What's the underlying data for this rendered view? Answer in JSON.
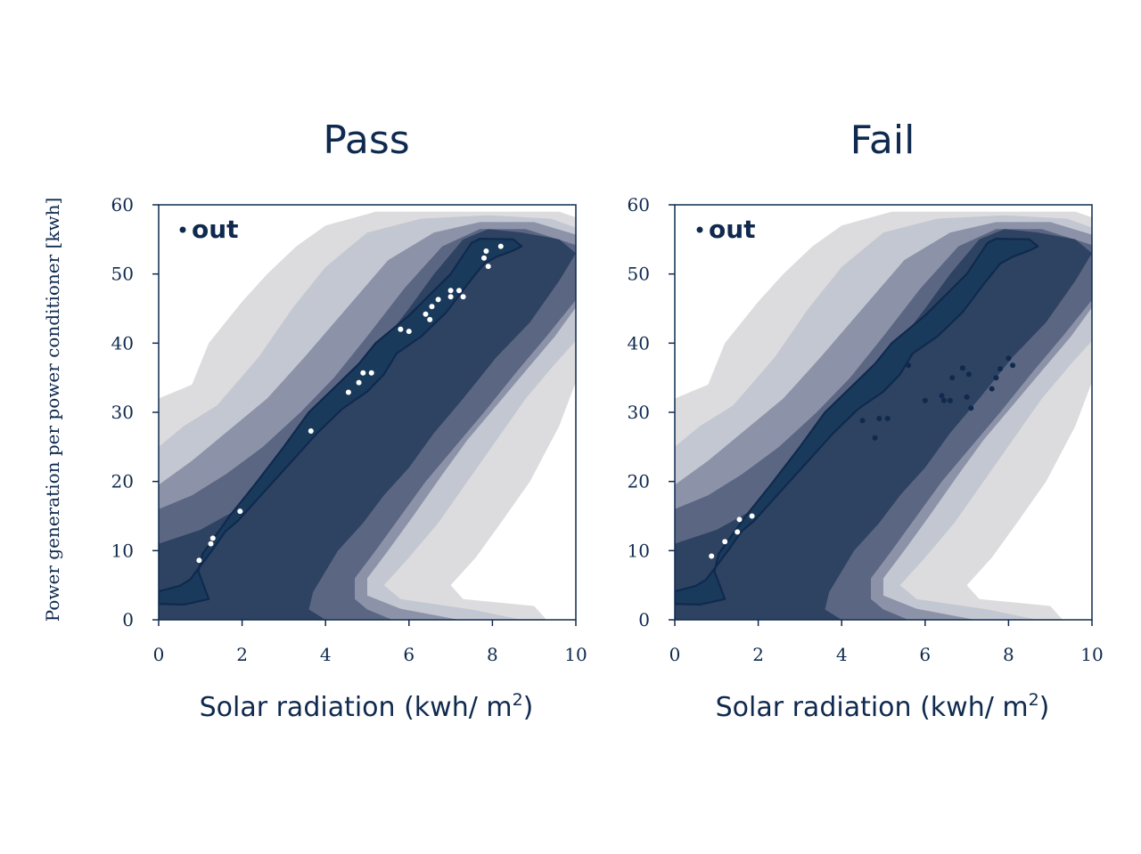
{
  "figure": {
    "ylabel": "Power generation per power conditioner [kwh]"
  },
  "colors": {
    "axis": "#0f2a4e",
    "levels": [
      "#dcdcde",
      "#c3c7d1",
      "#8c92a8",
      "#5b6682",
      "#2e4262",
      "#1a3a5c"
    ],
    "pass_points": "#ffffff",
    "fail_points": "#0f2a4e"
  },
  "chart_data": [
    {
      "type": "scatter",
      "title": "Pass",
      "xlabel_main": "Solar radiation (kwh/ m",
      "xlabel_sup": "2",
      "xlabel_tail": ")",
      "xlim": [
        0,
        10
      ],
      "ylim": [
        0,
        60
      ],
      "xticks": [
        0,
        2,
        4,
        6,
        8,
        10
      ],
      "yticks": [
        0,
        10,
        20,
        30,
        40,
        50,
        60
      ],
      "legend": {
        "label": "out",
        "position": "top-left"
      },
      "background": "density-contours",
      "points": [
        [
          0.97,
          8.6
        ],
        [
          1.25,
          11.0
        ],
        [
          1.3,
          11.8
        ],
        [
          1.95,
          15.7
        ],
        [
          3.65,
          27.3
        ],
        [
          4.55,
          32.9
        ],
        [
          4.8,
          34.3
        ],
        [
          4.9,
          35.7
        ],
        [
          5.1,
          35.7
        ],
        [
          5.8,
          42.0
        ],
        [
          6.0,
          41.7
        ],
        [
          6.4,
          44.2
        ],
        [
          6.5,
          43.4
        ],
        [
          6.55,
          45.3
        ],
        [
          6.7,
          46.3
        ],
        [
          7.0,
          46.7
        ],
        [
          7.0,
          47.6
        ],
        [
          7.2,
          47.6
        ],
        [
          7.3,
          46.7
        ],
        [
          7.8,
          52.3
        ],
        [
          7.85,
          53.3
        ],
        [
          7.9,
          51.1
        ],
        [
          8.2,
          54.0
        ]
      ]
    },
    {
      "type": "scatter",
      "title": "Fail",
      "xlabel_main": "Solar radiation (kwh/ m",
      "xlabel_sup": "2",
      "xlabel_tail": ")",
      "xlim": [
        0,
        10
      ],
      "ylim": [
        0,
        60
      ],
      "xticks": [
        0,
        2,
        4,
        6,
        8,
        10
      ],
      "yticks": [
        0,
        10,
        20,
        30,
        40,
        50,
        60
      ],
      "legend": {
        "label": "out",
        "position": "top-left"
      },
      "background": "density-contours",
      "points": [
        [
          0.88,
          9.2
        ],
        [
          1.2,
          11.3
        ],
        [
          1.5,
          12.7
        ],
        [
          1.55,
          14.5
        ],
        [
          1.85,
          15.0
        ],
        [
          4.5,
          28.8
        ],
        [
          4.8,
          26.3
        ],
        [
          4.9,
          29.1
        ],
        [
          5.1,
          29.1
        ],
        [
          5.6,
          36.8
        ],
        [
          6.0,
          31.7
        ],
        [
          6.4,
          32.4
        ],
        [
          6.45,
          31.7
        ],
        [
          6.6,
          31.7
        ],
        [
          6.65,
          35.0
        ],
        [
          6.9,
          36.4
        ],
        [
          7.0,
          32.2
        ],
        [
          7.05,
          35.5
        ],
        [
          7.1,
          30.6
        ],
        [
          7.6,
          33.4
        ],
        [
          7.7,
          35.0
        ],
        [
          7.8,
          36.3
        ],
        [
          8.0,
          37.8
        ],
        [
          8.1,
          36.8
        ]
      ]
    }
  ]
}
